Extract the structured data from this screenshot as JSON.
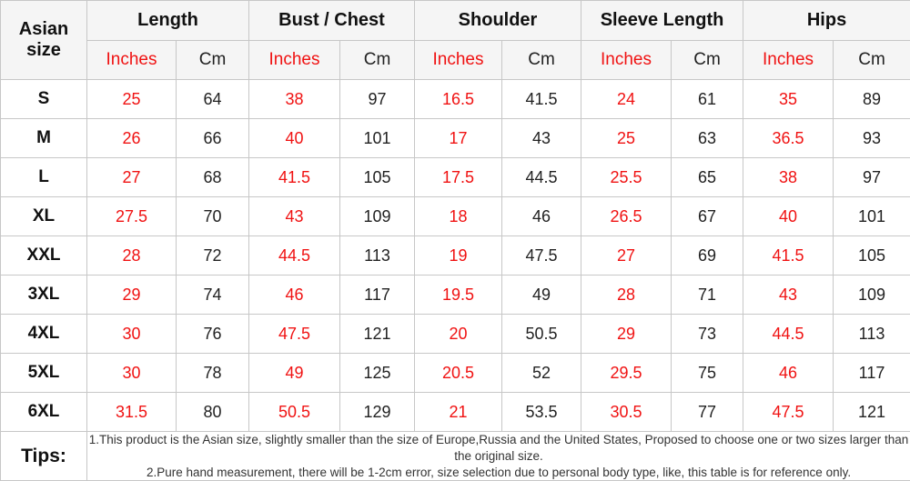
{
  "table": {
    "corner_header": "Asian size",
    "column_groups": [
      {
        "label": "Length"
      },
      {
        "label": "Bust / Chest"
      },
      {
        "label": "Shoulder"
      },
      {
        "label": "Sleeve Length"
      },
      {
        "label": "Hips"
      }
    ],
    "sub_headers": {
      "inches": "Inches",
      "cm": "Cm"
    },
    "rows": [
      {
        "size": "S",
        "values": [
          "25",
          "64",
          "38",
          "97",
          "16.5",
          "41.5",
          "24",
          "61",
          "35",
          "89"
        ]
      },
      {
        "size": "M",
        "values": [
          "26",
          "66",
          "40",
          "101",
          "17",
          "43",
          "25",
          "63",
          "36.5",
          "93"
        ]
      },
      {
        "size": "L",
        "values": [
          "27",
          "68",
          "41.5",
          "105",
          "17.5",
          "44.5",
          "25.5",
          "65",
          "38",
          "97"
        ]
      },
      {
        "size": "XL",
        "values": [
          "27.5",
          "70",
          "43",
          "109",
          "18",
          "46",
          "26.5",
          "67",
          "40",
          "101"
        ]
      },
      {
        "size": "XXL",
        "values": [
          "28",
          "72",
          "44.5",
          "113",
          "19",
          "47.5",
          "27",
          "69",
          "41.5",
          "105"
        ]
      },
      {
        "size": "3XL",
        "values": [
          "29",
          "74",
          "46",
          "117",
          "19.5",
          "49",
          "28",
          "71",
          "43",
          "109"
        ]
      },
      {
        "size": "4XL",
        "values": [
          "30",
          "76",
          "47.5",
          "121",
          "20",
          "50.5",
          "29",
          "73",
          "44.5",
          "113"
        ]
      },
      {
        "size": "5XL",
        "values": [
          "30",
          "78",
          "49",
          "125",
          "20.5",
          "52",
          "29.5",
          "75",
          "46",
          "117"
        ]
      },
      {
        "size": "6XL",
        "values": [
          "31.5",
          "80",
          "50.5",
          "129",
          "21",
          "53.5",
          "30.5",
          "77",
          "47.5",
          "121"
        ]
      }
    ],
    "tips": {
      "label": "Tips:",
      "lines": [
        "1.This product is the Asian size, slightly smaller than the size of Europe,Russia and the United States, Proposed to choose one or two sizes larger than the original size.",
        "2.Pure hand measurement, there will be 1-2cm error, size selection due to personal body type, like, this table is for reference only."
      ]
    }
  },
  "colors": {
    "inches_text": "#f01212",
    "cm_text": "#222222",
    "header_background": "#f5f5f5",
    "cell_border": "#c7c7c7"
  },
  "chart_data": {
    "type": "table",
    "title": "Asian size garment measurement chart",
    "columns": [
      "Asian size",
      "Length Inches",
      "Length Cm",
      "Bust / Chest Inches",
      "Bust / Chest Cm",
      "Shoulder Inches",
      "Shoulder Cm",
      "Sleeve Length Inches",
      "Sleeve Length Cm",
      "Hips Inches",
      "Hips Cm"
    ],
    "rows": [
      [
        "S",
        25,
        64,
        38,
        97,
        16.5,
        41.5,
        24,
        61,
        35,
        89
      ],
      [
        "M",
        26,
        66,
        40,
        101,
        17,
        43,
        25,
        63,
        36.5,
        93
      ],
      [
        "L",
        27,
        68,
        41.5,
        105,
        17.5,
        44.5,
        25.5,
        65,
        38,
        97
      ],
      [
        "XL",
        27.5,
        70,
        43,
        109,
        18,
        46,
        26.5,
        67,
        40,
        101
      ],
      [
        "XXL",
        28,
        72,
        44.5,
        113,
        19,
        47.5,
        27,
        69,
        41.5,
        105
      ],
      [
        "3XL",
        29,
        74,
        46,
        117,
        19.5,
        49,
        28,
        71,
        43,
        109
      ],
      [
        "4XL",
        30,
        76,
        47.5,
        121,
        20,
        50.5,
        29,
        73,
        44.5,
        113
      ],
      [
        "5XL",
        30,
        78,
        49,
        125,
        20.5,
        52,
        29.5,
        75,
        46,
        117
      ],
      [
        "6XL",
        31.5,
        80,
        50.5,
        129,
        21,
        53.5,
        30.5,
        77,
        47.5,
        121
      ]
    ],
    "notes": [
      "1.This product is the Asian size, slightly smaller than the size of Europe,Russia and the United States, Proposed to choose one or two sizes larger than the original size.",
      "2.Pure hand measurement, there will be 1-2cm error, size selection due to personal body type, like, this table is for reference only."
    ]
  }
}
